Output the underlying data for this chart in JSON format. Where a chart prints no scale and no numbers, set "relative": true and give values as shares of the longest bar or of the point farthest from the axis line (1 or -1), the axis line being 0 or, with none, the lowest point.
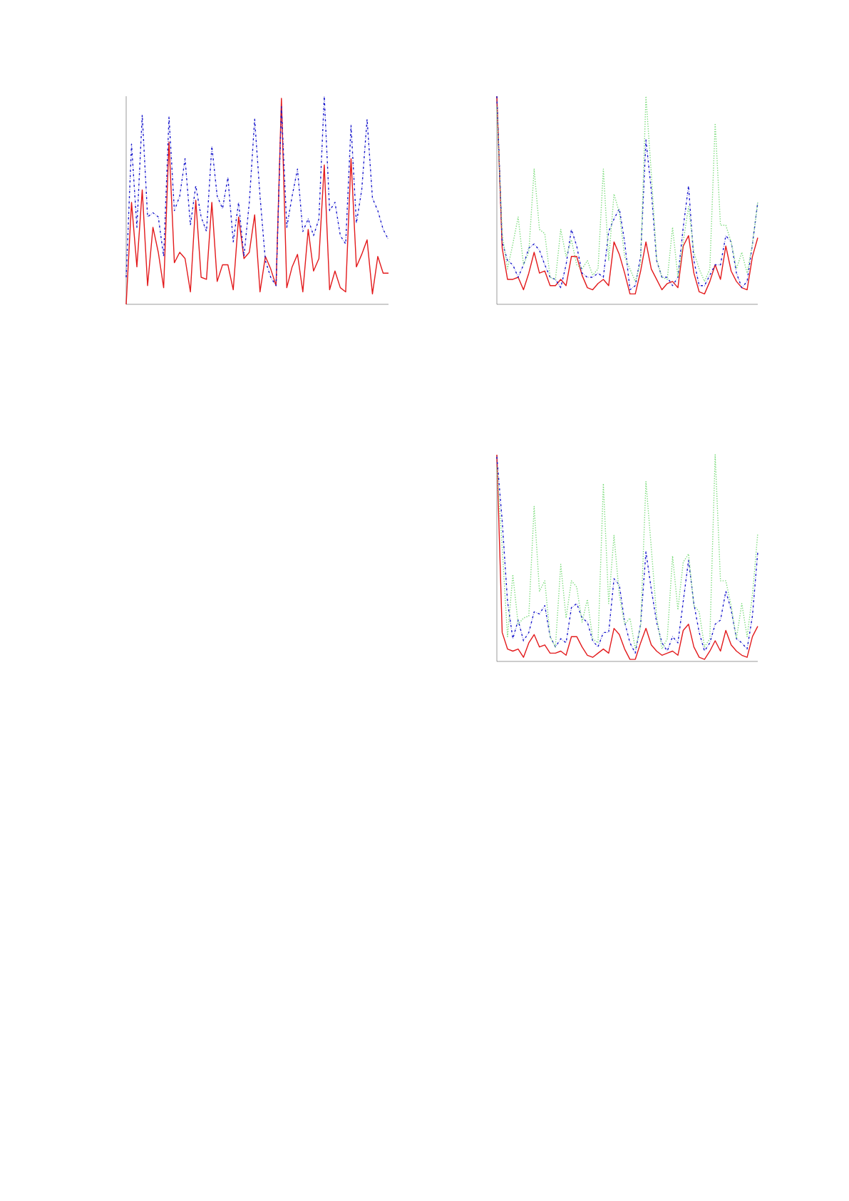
{
  "chart_data": [
    {
      "type": "line",
      "relative": true,
      "marker": "none",
      "categories": [
        null,
        null,
        null,
        null,
        null,
        null,
        null,
        null,
        null,
        null,
        null,
        null,
        null,
        null,
        null,
        null,
        null,
        null,
        null,
        null,
        null,
        null,
        null,
        null,
        null,
        null,
        null,
        null,
        null,
        null,
        null,
        null,
        null,
        null,
        null,
        null,
        null,
        null,
        null,
        null,
        null,
        null,
        null,
        null,
        null,
        null,
        null,
        null,
        null,
        null
      ],
      "series": [
        {
          "color": "#e31a1c",
          "line_style": "solid",
          "values": [
            0,
            0.49,
            0.18,
            0.55,
            0.09,
            0.37,
            0.25,
            0.08,
            0.78,
            0.2,
            0.25,
            0.22,
            0.06,
            0.5,
            0.13,
            0.12,
            0.49,
            0.11,
            0.19,
            0.19,
            0.07,
            0.42,
            0.22,
            0.25,
            0.43,
            0.06,
            0.23,
            0.17,
            0.09,
            0.99,
            0.08,
            0.18,
            0.24,
            0.06,
            0.36,
            0.16,
            0.22,
            0.67,
            0.07,
            0.16,
            0.08,
            0.06,
            0.7,
            0.18,
            0.24,
            0.31,
            0.05,
            0.23,
            0.15,
            0.15
          ]
        },
        {
          "color": "#1a1acc",
          "line_style": "dashed",
          "values": [
            0.13,
            0.77,
            0.37,
            0.91,
            0.42,
            0.44,
            0.42,
            0.23,
            0.9,
            0.45,
            0.52,
            0.7,
            0.38,
            0.57,
            0.42,
            0.35,
            0.76,
            0.52,
            0.46,
            0.61,
            0.3,
            0.49,
            0.23,
            0.49,
            0.89,
            0.52,
            0.21,
            0.13,
            0.09,
            0.95,
            0.37,
            0.52,
            0.65,
            0.35,
            0.41,
            0.33,
            0.41,
            1,
            0.45,
            0.49,
            0.33,
            0.29,
            0.86,
            0.39,
            0.55,
            0.89,
            0.51,
            0.45,
            0.36,
            0.31
          ]
        }
      ]
    },
    {
      "type": "line",
      "relative": true,
      "marker": "none",
      "categories": [
        null,
        null,
        null,
        null,
        null,
        null,
        null,
        null,
        null,
        null,
        null,
        null,
        null,
        null,
        null,
        null,
        null,
        null,
        null,
        null,
        null,
        null,
        null,
        null,
        null,
        null,
        null,
        null,
        null,
        null,
        null,
        null,
        null,
        null,
        null,
        null,
        null,
        null,
        null,
        null,
        null,
        null,
        null,
        null,
        null,
        null,
        null,
        null,
        null,
        null
      ],
      "series": [
        {
          "color": "#e31a1c",
          "line_style": "solid",
          "values": [
            1,
            0.27,
            0.12,
            0.12,
            0.13,
            0.07,
            0.15,
            0.25,
            0.15,
            0.16,
            0.09,
            0.09,
            0.12,
            0.09,
            0.23,
            0.23,
            0.14,
            0.08,
            0.07,
            0.1,
            0.12,
            0.09,
            0.3,
            0.24,
            0.15,
            0.05,
            0.05,
            0.16,
            0.3,
            0.17,
            0.12,
            0.07,
            0.1,
            0.11,
            0.08,
            0.28,
            0.33,
            0.15,
            0.06,
            0.05,
            0.11,
            0.19,
            0.12,
            0.28,
            0.16,
            0.11,
            0.08,
            0.07,
            0.23,
            0.32
          ]
        },
        {
          "color": "#1a1acc",
          "line_style": "dashed",
          "values": [
            1,
            0.3,
            0.21,
            0.19,
            0.13,
            0.19,
            0.27,
            0.29,
            0.26,
            0.19,
            0.13,
            0.12,
            0.08,
            0.19,
            0.36,
            0.28,
            0.15,
            0.13,
            0.13,
            0.15,
            0.13,
            0.35,
            0.41,
            0.46,
            0.3,
            0.07,
            0.09,
            0.23,
            0.79,
            0.55,
            0.21,
            0.13,
            0.13,
            0.09,
            0.13,
            0.37,
            0.57,
            0.21,
            0.09,
            0.09,
            0.14,
            0.19,
            0.19,
            0.33,
            0.3,
            0.15,
            0.08,
            0.11,
            0.29,
            0.49
          ]
        },
        {
          "color": "#7ddc7d",
          "line_style": "dotted",
          "values": [
            0.95,
            0.34,
            0.17,
            0.29,
            0.42,
            0.19,
            0.25,
            0.65,
            0.36,
            0.34,
            0.13,
            0.12,
            0.36,
            0.23,
            0.31,
            0.19,
            0.17,
            0.21,
            0.14,
            0.17,
            0.65,
            0.21,
            0.53,
            0.44,
            0.23,
            0.17,
            0.11,
            0.2,
            1,
            0.63,
            0.22,
            0.13,
            0.12,
            0.37,
            0.13,
            0.3,
            0.47,
            0.25,
            0.17,
            0.11,
            0.17,
            0.87,
            0.38,
            0.38,
            0.3,
            0.17,
            0.25,
            0.15,
            0.29,
            0.49
          ]
        }
      ]
    },
    {
      "type": "line",
      "relative": true,
      "marker": "none",
      "categories": [
        null,
        null,
        null,
        null,
        null,
        null,
        null,
        null,
        null,
        null,
        null,
        null,
        null,
        null,
        null,
        null,
        null,
        null,
        null,
        null,
        null,
        null,
        null,
        null,
        null,
        null,
        null,
        null,
        null,
        null,
        null,
        null,
        null,
        null,
        null,
        null,
        null,
        null,
        null,
        null,
        null,
        null,
        null,
        null,
        null,
        null,
        null,
        null,
        null,
        null
      ],
      "series": [
        {
          "color": "#e31a1c",
          "line_style": "solid",
          "values": [
            1,
            0.14,
            0.06,
            0.05,
            0.06,
            0.02,
            0.09,
            0.13,
            0.07,
            0.08,
            0.04,
            0.04,
            0.05,
            0.03,
            0.12,
            0.12,
            0.07,
            0.03,
            0.02,
            0.04,
            0.06,
            0.04,
            0.16,
            0.13,
            0.06,
            0.01,
            0.01,
            0.09,
            0.16,
            0.08,
            0.05,
            0.03,
            0.04,
            0.05,
            0.03,
            0.15,
            0.18,
            0.07,
            0.02,
            0.01,
            0.05,
            0.1,
            0.05,
            0.15,
            0.08,
            0.05,
            0.03,
            0.02,
            0.12,
            0.17
          ]
        },
        {
          "color": "#1a1acc",
          "line_style": "dashed",
          "values": [
            0.99,
            0.68,
            0.29,
            0.11,
            0.2,
            0.1,
            0.14,
            0.24,
            0.23,
            0.27,
            0.12,
            0.07,
            0.11,
            0.09,
            0.26,
            0.28,
            0.21,
            0.19,
            0.1,
            0.07,
            0.14,
            0.14,
            0.4,
            0.37,
            0.19,
            0.09,
            0.04,
            0.18,
            0.53,
            0.35,
            0.19,
            0.09,
            0.05,
            0.12,
            0.09,
            0.29,
            0.49,
            0.28,
            0.14,
            0.05,
            0.09,
            0.18,
            0.2,
            0.34,
            0.25,
            0.11,
            0.09,
            0.06,
            0.22,
            0.53
          ]
        },
        {
          "color": "#7ddc7d",
          "line_style": "dotted",
          "values": [
            0.94,
            0.55,
            0.12,
            0.42,
            0.18,
            0.21,
            0.22,
            0.75,
            0.34,
            0.39,
            0.12,
            0.07,
            0.47,
            0.21,
            0.39,
            0.36,
            0.19,
            0.3,
            0.11,
            0.09,
            0.86,
            0.28,
            0.61,
            0.32,
            0.18,
            0.21,
            0.06,
            0.17,
            0.87,
            0.55,
            0.22,
            0.06,
            0.11,
            0.51,
            0.25,
            0.48,
            0.52,
            0.27,
            0.24,
            0.07,
            0.11,
            1,
            0.39,
            0.39,
            0.27,
            0.11,
            0.28,
            0.12,
            0.32,
            0.62
          ]
        }
      ]
    }
  ]
}
